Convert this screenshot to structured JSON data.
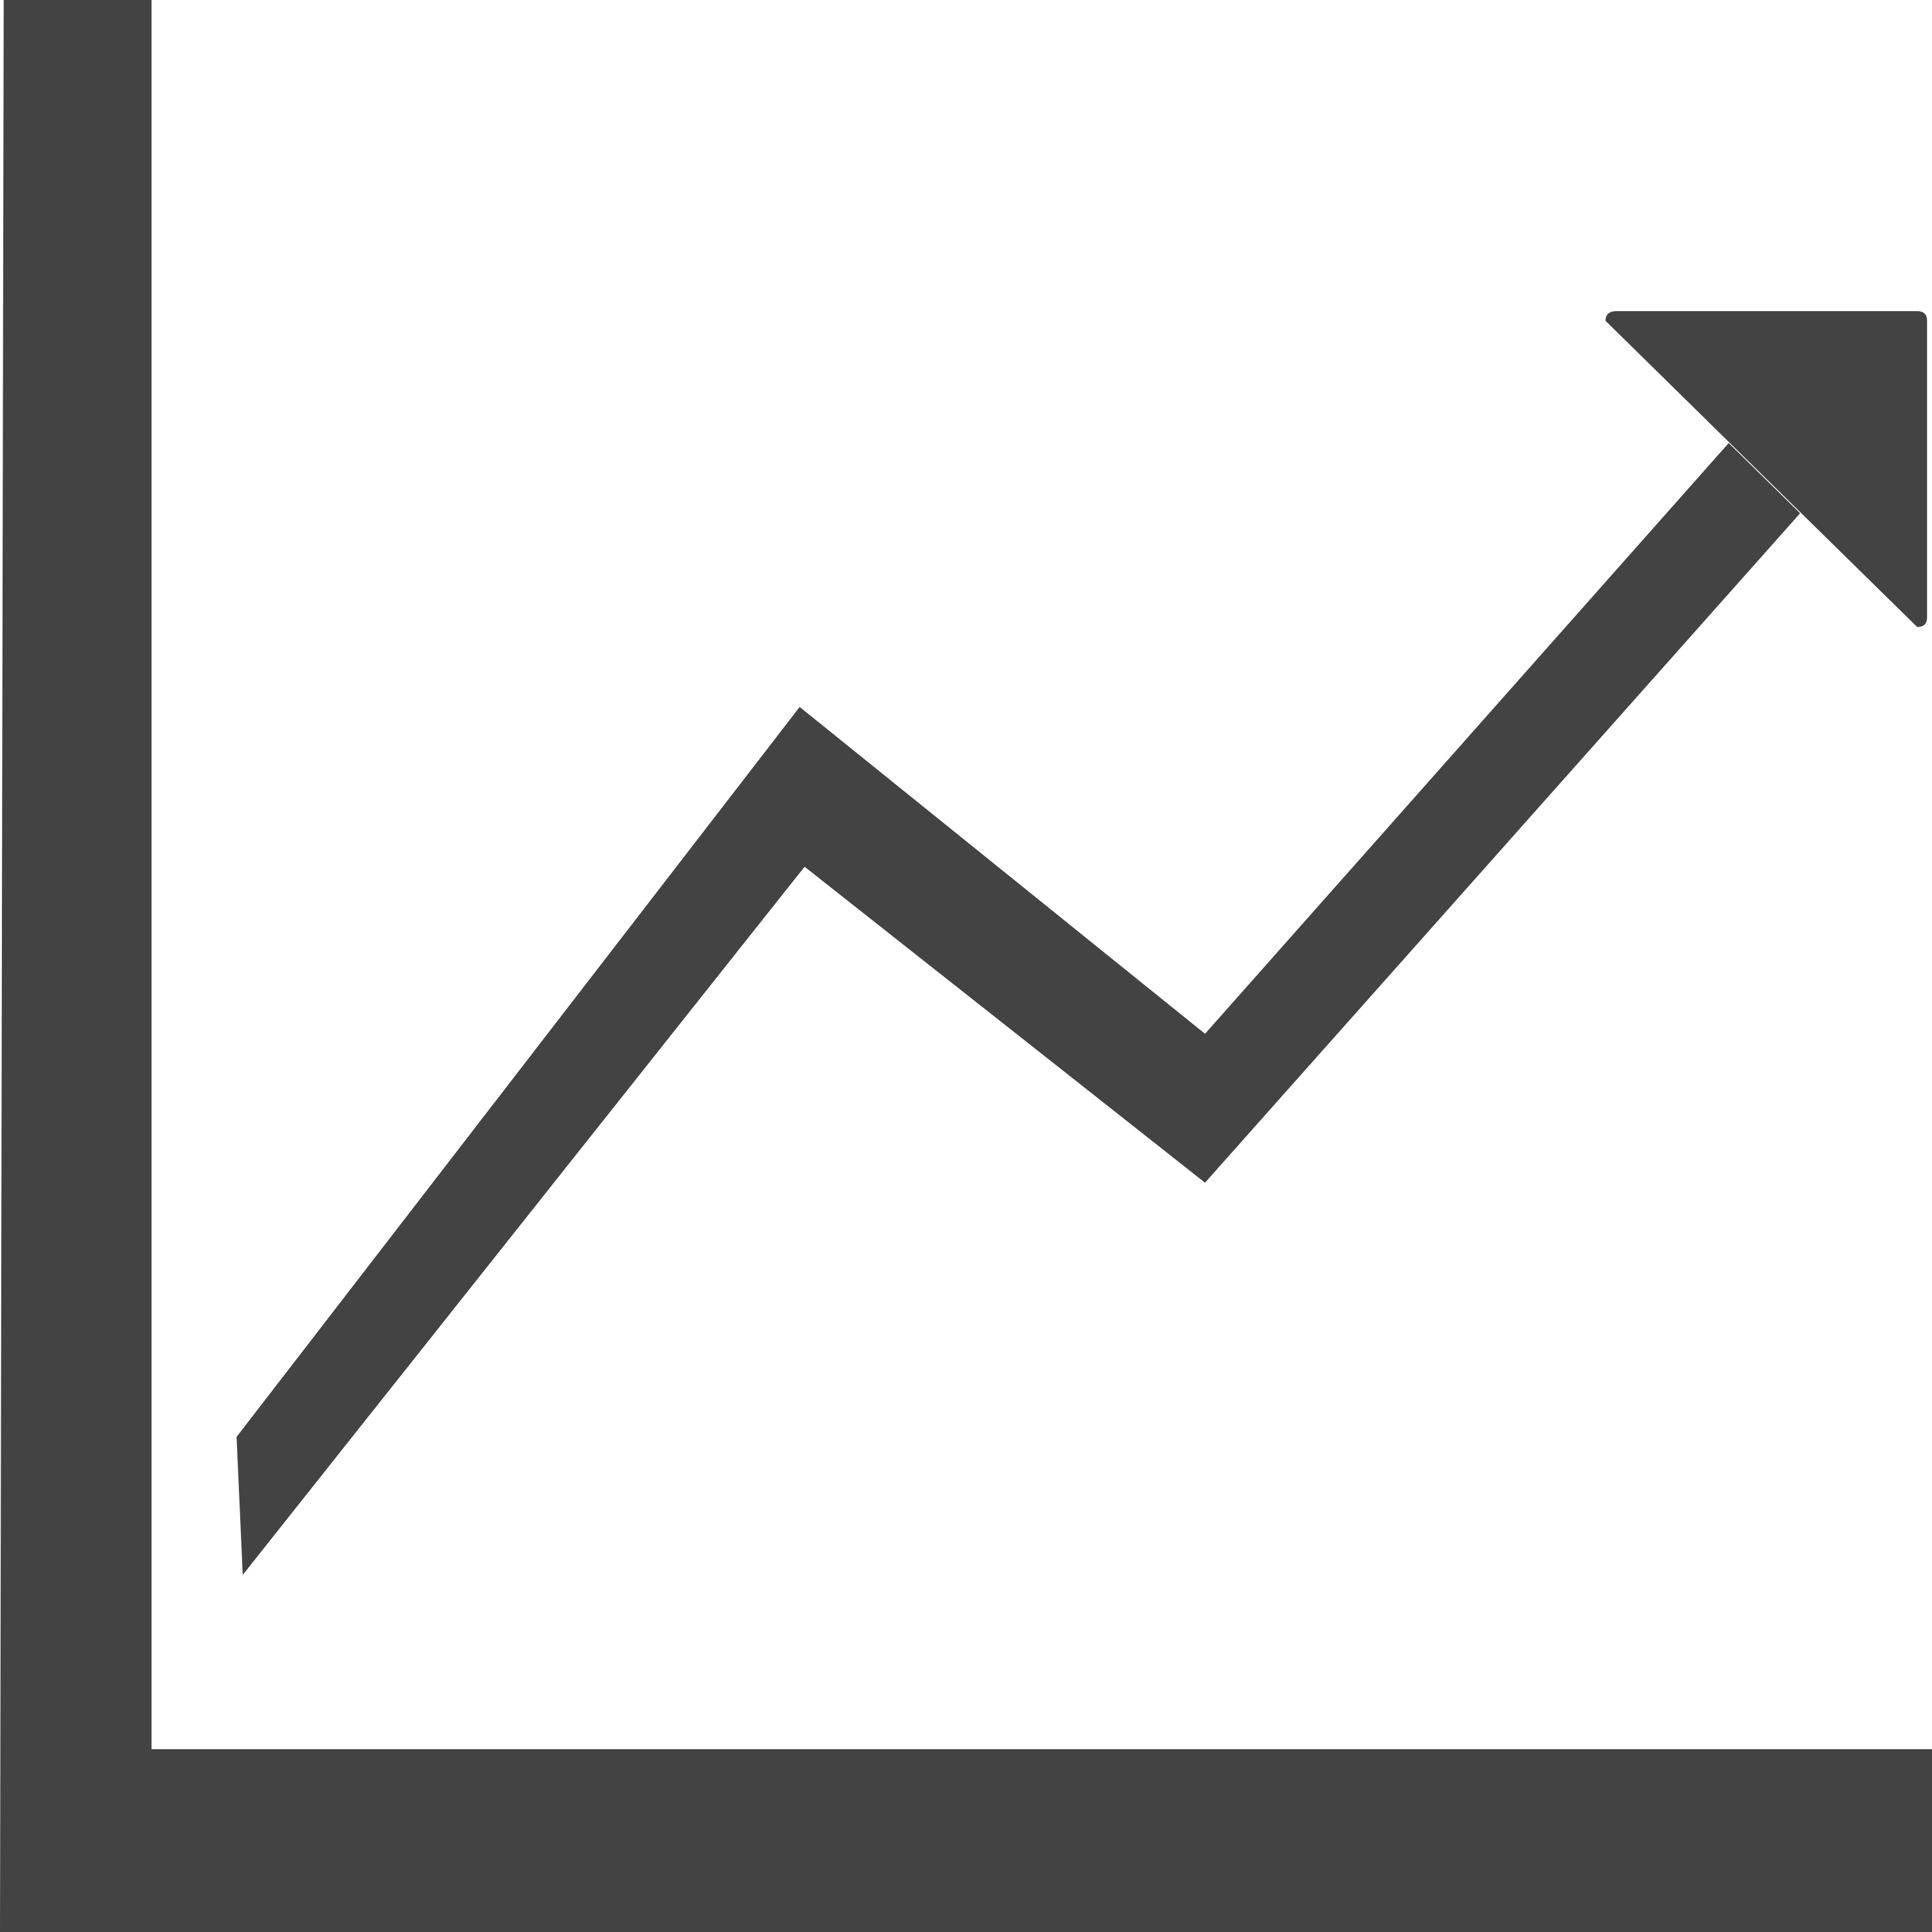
{
  "icon": {
    "name": "trending-up-chart-icon",
    "fill_color": "#434343",
    "background_color": "#ffffff"
  }
}
